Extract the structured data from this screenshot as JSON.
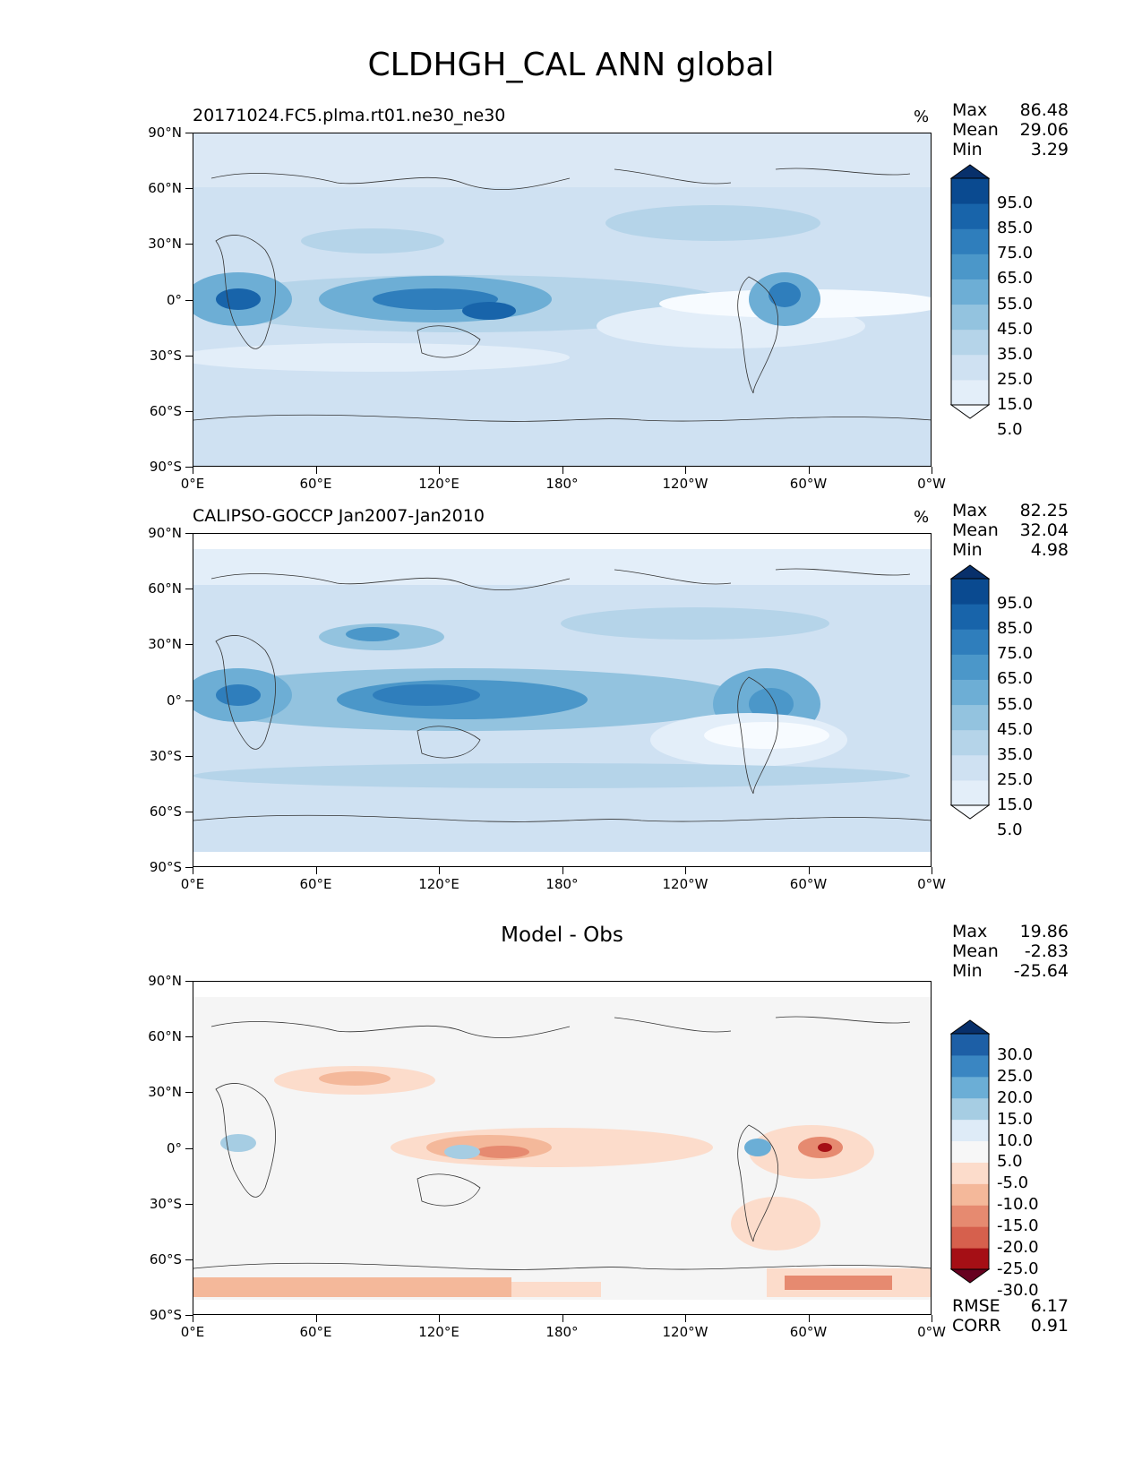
{
  "figure": {
    "title": "CLDHGH_CAL ANN global"
  },
  "axes": {
    "lat_ticks": [
      "90°N",
      "60°N",
      "30°N",
      "0°",
      "30°S",
      "60°S",
      "90°S"
    ],
    "lon_ticks": [
      "0°E",
      "60°E",
      "120°E",
      "180°",
      "120°W",
      "60°W",
      "0°W"
    ]
  },
  "panels": [
    {
      "id": "model",
      "label": "20171024.FC5.plma.rt01.ne30_ne30",
      "centered_label": "",
      "units": "%",
      "stats": [
        {
          "name": "Max",
          "value": "86.48"
        },
        {
          "name": "Mean",
          "value": "29.06"
        },
        {
          "name": "Min",
          "value": "3.29"
        }
      ],
      "colorbar": {
        "colors": [
          "#f7fbff",
          "#e3eef9",
          "#cfe1f2",
          "#b5d4e9",
          "#93c3df",
          "#6daed5",
          "#4b97c9",
          "#2f7ebc",
          "#1864aa",
          "#0a4a90",
          "#08306b"
        ],
        "labels": [
          "95.0",
          "85.0",
          "75.0",
          "65.0",
          "55.0",
          "45.0",
          "35.0",
          "25.0",
          "15.0",
          "5.0"
        ]
      }
    },
    {
      "id": "obs",
      "label": "CALIPSO-GOCCP Jan2007-Jan2010",
      "centered_label": "",
      "units": "%",
      "stats": [
        {
          "name": "Max",
          "value": "82.25"
        },
        {
          "name": "Mean",
          "value": "32.04"
        },
        {
          "name": "Min",
          "value": "4.98"
        }
      ],
      "colorbar": {
        "colors": [
          "#f7fbff",
          "#e3eef9",
          "#cfe1f2",
          "#b5d4e9",
          "#93c3df",
          "#6daed5",
          "#4b97c9",
          "#2f7ebc",
          "#1864aa",
          "#0a4a90",
          "#08306b"
        ],
        "labels": [
          "95.0",
          "85.0",
          "75.0",
          "65.0",
          "55.0",
          "45.0",
          "35.0",
          "25.0",
          "15.0",
          "5.0"
        ]
      }
    },
    {
      "id": "diff",
      "label": "",
      "centered_label": "Model - Obs",
      "units": "",
      "stats": [
        {
          "name": "Max",
          "value": "19.86"
        },
        {
          "name": "Mean",
          "value": "-2.83"
        },
        {
          "name": "Min",
          "value": "-25.64"
        }
      ],
      "colorbar": {
        "colors": [
          "#67001f",
          "#a50f15",
          "#d6604d",
          "#e68a70",
          "#f4b89a",
          "#fcdccb",
          "#f7f7f7",
          "#deebf7",
          "#a6cde3",
          "#6baed6",
          "#3a86c2",
          "#1d5fa6",
          "#08306b"
        ],
        "labels": [
          "30.0",
          "25.0",
          "20.0",
          "15.0",
          "10.0",
          "5.0",
          "-5.0",
          "-10.0",
          "-15.0",
          "-20.0",
          "-25.0",
          "-30.0"
        ]
      },
      "metrics": [
        {
          "name": "RMSE",
          "value": "6.17"
        },
        {
          "name": "CORR",
          "value": "0.91"
        }
      ]
    }
  ]
}
